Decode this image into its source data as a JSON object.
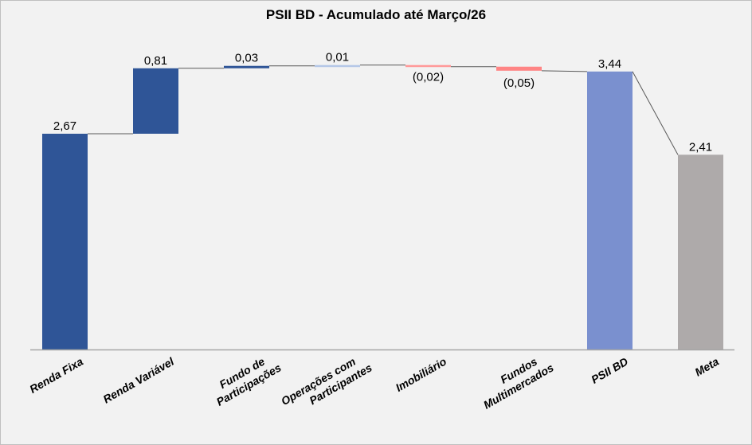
{
  "chart_data": {
    "type": "waterfall",
    "title": "PSII BD - Acumulado  até Março/26",
    "xlabel": "",
    "ylabel": "",
    "ylim": [
      0,
      4.3
    ],
    "grid": false,
    "legend": "none",
    "categories": [
      [
        "Renda Fixa"
      ],
      [
        "Renda Variável"
      ],
      [
        "Fundo de",
        "Participações"
      ],
      [
        "Operações com",
        "Participantes"
      ],
      [
        "Imobiliário"
      ],
      [
        "Fundos",
        "Multimercados"
      ],
      [
        "PSII BD"
      ],
      [
        "Meta"
      ]
    ],
    "values": [
      2.67,
      0.81,
      0.03,
      0.01,
      -0.02,
      -0.05,
      3.44,
      2.41
    ],
    "kinds": [
      "delta",
      "delta",
      "delta",
      "delta",
      "delta",
      "delta",
      "total",
      "total"
    ],
    "labels": [
      "2,67",
      "0,81",
      "0,03",
      "0,01",
      "(0,02)",
      "(0,05)",
      "3,44",
      "2,41"
    ],
    "colors": [
      "#2F5597",
      "#2F5597",
      "#2F5597",
      "#B4C7E7",
      "#FF9999",
      "#FF8585",
      "#7A90CF",
      "#AEAAAA"
    ],
    "connector_color": "#595959",
    "background": "#F2F2F2"
  }
}
